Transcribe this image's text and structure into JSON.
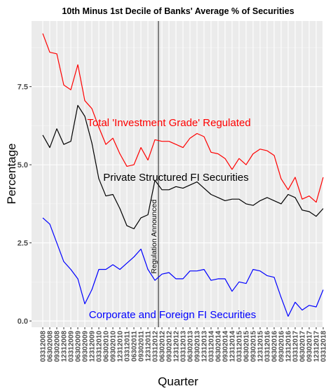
{
  "chart_data": {
    "type": "line",
    "title": "10th Minus 1st Decile of Banks' Average % of Securities",
    "xlabel": "Quarter",
    "ylabel": "Percentage",
    "ylim": [
      -0.2,
      9.6
    ],
    "yticks": [
      0.0,
      2.5,
      5.0,
      7.5
    ],
    "ytick_labels": [
      "0.0",
      "2.5",
      "5.0",
      "7.5"
    ],
    "grid": true,
    "x": [
      "03312008",
      "06302008",
      "09302008",
      "12312008",
      "03312009",
      "06302009",
      "09302009",
      "12312009",
      "03312010",
      "06302010",
      "09302010",
      "12312010",
      "03312011",
      "06302011",
      "09302011",
      "12312011",
      "03312012",
      "06302012",
      "09302012",
      "12312012",
      "03312013",
      "06302013",
      "09302013",
      "12312013",
      "03312014",
      "06302014",
      "09302014",
      "12312014",
      "03312015",
      "06302015",
      "09302015",
      "12312015",
      "03312016",
      "06302016",
      "09302016",
      "12312016",
      "03312017",
      "06302017",
      "09302017",
      "12312017",
      "03312018"
    ],
    "x_labels": [
      "03312008",
      "06302008",
      "09302008",
      "12312008",
      "03312009",
      "06302009",
      "09302009",
      "12312009",
      "03312010",
      "06302010",
      "09302010",
      "12312010",
      "03312011",
      "06302011",
      "09302011",
      "12312011",
      "03312012",
      "06302012",
      "09302012",
      "12312012",
      "03312013",
      "06302013",
      "09302013",
      "12312013",
      "03312014",
      "06302014",
      "09302014",
      "12312014",
      "03312015",
      "06302015",
      "09302015",
      "12312015",
      "03312016",
      "06302016",
      "09302016",
      "12312016",
      "03312017",
      "06302017",
      "09302017",
      "12312017",
      "03312018"
    ],
    "series": [
      {
        "color": "#ff0000",
        "values": [
          9.2,
          8.6,
          8.55,
          7.55,
          7.4,
          8.2,
          7.05,
          6.8,
          6.2,
          5.65,
          5.85,
          5.35,
          4.95,
          5.0,
          5.55,
          5.15,
          5.8,
          5.75,
          5.75,
          5.65,
          5.55,
          5.85,
          6.0,
          5.9,
          5.4,
          5.35,
          5.2,
          4.85,
          5.2,
          5.0,
          5.35,
          5.5,
          5.45,
          5.3,
          4.55,
          4.2,
          4.6,
          3.9,
          4.0,
          3.8,
          4.6
        ]
      },
      {
        "color": "#000000",
        "values": [
          5.95,
          5.55,
          6.15,
          5.65,
          5.75,
          6.9,
          6.55,
          5.7,
          4.55,
          4.0,
          4.05,
          3.6,
          3.05,
          2.95,
          3.3,
          3.4,
          4.5,
          4.2,
          4.2,
          4.3,
          4.25,
          4.35,
          4.45,
          4.25,
          4.05,
          3.95,
          3.85,
          3.9,
          3.9,
          3.75,
          3.7,
          3.85,
          3.95,
          3.85,
          3.75,
          4.05,
          3.95,
          3.55,
          3.5,
          3.35,
          3.6
        ]
      },
      {
        "color": "#0000ff",
        "values": [
          3.3,
          3.1,
          2.5,
          1.9,
          1.65,
          1.35,
          0.55,
          1.0,
          1.65,
          1.65,
          1.8,
          1.65,
          1.85,
          2.05,
          2.3,
          1.65,
          1.3,
          1.5,
          1.55,
          1.35,
          1.35,
          1.6,
          1.6,
          1.65,
          1.3,
          1.35,
          1.35,
          0.95,
          1.25,
          1.2,
          1.65,
          1.6,
          1.45,
          1.4,
          0.75,
          0.15,
          0.6,
          0.35,
          0.5,
          0.45,
          1.0
        ]
      }
    ],
    "annotations": [
      {
        "text": "Total 'Investment Grade' Regulated",
        "color": "#ff0000",
        "x_index": 18,
        "y": 6.35
      },
      {
        "text": "Private Structured FI Securities",
        "color": "#000000",
        "x_index": 19,
        "y": 4.6
      },
      {
        "text": "Corporate and Foreign FI Securities",
        "color": "#0000ff",
        "x_index": 18.5,
        "y": 0.2
      }
    ],
    "vline": {
      "x_index": 16.5,
      "label": "Regulation Announced",
      "label_y": 2.7
    }
  }
}
